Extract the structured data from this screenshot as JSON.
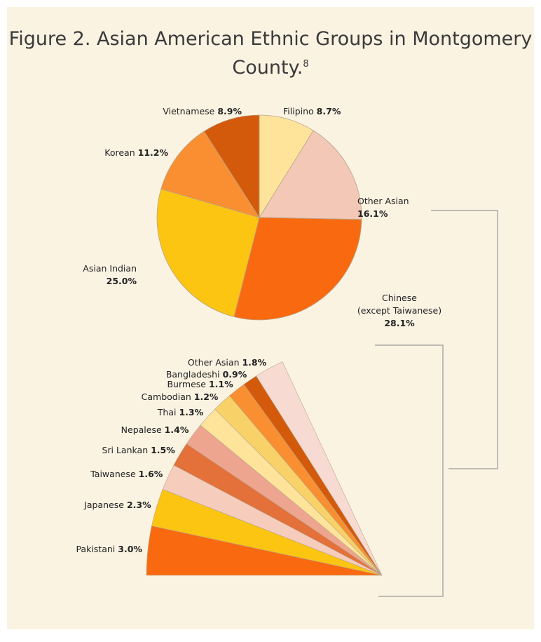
{
  "chart_data": [
    {
      "type": "pie",
      "title": "Figure 2. Asian American Ethnic Groups in Montgomery County.",
      "title_footnote": "8",
      "categories": [
        "Filipino",
        "Other Asian",
        "Chinese\n(except Taiwanese)",
        "Asian Indian",
        "Korean",
        "Vietnamese"
      ],
      "values": [
        8.7,
        16.1,
        28.1,
        25.0,
        11.2,
        8.9
      ],
      "value_labels": [
        "8.7%",
        "16.1%",
        "28.1%",
        "25.0%",
        "11.2%",
        "8.9%"
      ],
      "colors": [
        "#fde49a",
        "#f3c8b6",
        "#f96a10",
        "#fbc512",
        "#f98f30",
        "#d45a0b"
      ]
    },
    {
      "type": "fan",
      "categories": [
        "Pakistani",
        "Japanese",
        "Taiwanese",
        "Sri Lankan",
        "Nepalese",
        "Thai",
        "Cambodian",
        "Burmese",
        "Bangladeshi",
        "Other Asian"
      ],
      "values": [
        3.0,
        2.3,
        1.6,
        1.5,
        1.4,
        1.3,
        1.2,
        1.1,
        0.9,
        1.8
      ],
      "value_labels": [
        "3.0%",
        "2.3%",
        "1.6%",
        "1.5%",
        "1.4%",
        "1.3%",
        "1.2%",
        "1.1%",
        "0.9%",
        "1.8%"
      ],
      "colors": [
        "#f96a10",
        "#fbc512",
        "#f6cdbd",
        "#e4703a",
        "#eea590",
        "#fde49a",
        "#f8d268",
        "#f98f30",
        "#d45a0b",
        "#f7dbd2"
      ]
    }
  ]
}
